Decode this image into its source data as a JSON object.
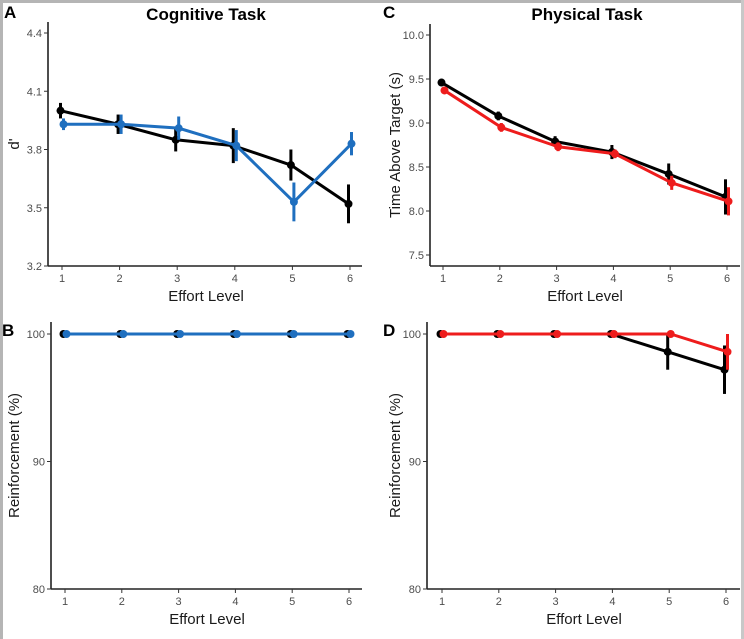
{
  "colors": {
    "cognitive": "#1f6fbf",
    "physical": "#ee1c1c",
    "black": "#000000"
  },
  "chart_data": [
    {
      "panel": "A",
      "type": "line",
      "title": "Cognitive Task",
      "title_color": "#1f6fbf",
      "xlabel": "Effort Level",
      "ylabel": "d'",
      "x": [
        1,
        2,
        3,
        4,
        5,
        6
      ],
      "x_ticks": [
        "1",
        "2",
        "3",
        "4",
        "5",
        "6"
      ],
      "ylim": [
        3.2,
        4.4
      ],
      "y_ticks": [
        "3.2",
        "3.5",
        "3.8",
        "4.1",
        "4.4"
      ],
      "y_tick_values": [
        3.2,
        3.5,
        3.8,
        4.1,
        4.4
      ],
      "grid": false,
      "series": [
        {
          "name": "black",
          "color": "#000000",
          "values": [
            4.0,
            3.93,
            3.85,
            3.82,
            3.72,
            3.52
          ],
          "err": [
            0.04,
            0.05,
            0.06,
            0.09,
            0.08,
            0.1
          ]
        },
        {
          "name": "blue",
          "color": "#1f6fbf",
          "values": [
            3.93,
            3.93,
            3.91,
            3.82,
            3.53,
            3.83
          ],
          "err": [
            0.03,
            0.05,
            0.06,
            0.08,
            0.1,
            0.06
          ]
        }
      ]
    },
    {
      "panel": "B",
      "type": "line",
      "title": "",
      "xlabel": "Effort Level",
      "ylabel": "Reinforcement (%)",
      "x": [
        1,
        2,
        3,
        4,
        5,
        6
      ],
      "x_ticks": [
        "1",
        "2",
        "3",
        "4",
        "5",
        "6"
      ],
      "ylim": [
        80,
        101
      ],
      "y_ticks": [
        "80",
        "90",
        "100"
      ],
      "y_tick_values": [
        80,
        90,
        100
      ],
      "grid": false,
      "series": [
        {
          "name": "black",
          "color": "#000000",
          "values": [
            100,
            100,
            100,
            100,
            100,
            100
          ],
          "err": [
            0,
            0,
            0,
            0,
            0,
            0
          ]
        },
        {
          "name": "blue",
          "color": "#1f6fbf",
          "values": [
            100,
            100,
            100,
            100,
            100,
            100
          ],
          "err": [
            0,
            0,
            0,
            0,
            0,
            0
          ]
        }
      ]
    },
    {
      "panel": "C",
      "type": "line",
      "title": "Physical Task",
      "title_color": "#ee1c1c",
      "xlabel": "Effort Level",
      "ylabel": "Time Above Target (s)",
      "x": [
        1,
        2,
        3,
        4,
        5,
        6
      ],
      "x_ticks": [
        "1",
        "2",
        "3",
        "4",
        "5",
        "6"
      ],
      "ylim": [
        7.5,
        10.0
      ],
      "y_ticks": [
        "7.5",
        "8.0",
        "8.5",
        "9.0",
        "9.5",
        "10.0"
      ],
      "y_tick_values": [
        7.5,
        8.0,
        8.5,
        9.0,
        9.5,
        10.0
      ],
      "grid": false,
      "series": [
        {
          "name": "black",
          "color": "#000000",
          "values": [
            9.46,
            9.08,
            8.79,
            8.67,
            8.42,
            8.16
          ],
          "err": [
            0.03,
            0.05,
            0.06,
            0.08,
            0.12,
            0.2
          ]
        },
        {
          "name": "red",
          "color": "#ee1c1c",
          "values": [
            9.37,
            8.95,
            8.73,
            8.65,
            8.32,
            8.11
          ],
          "err": [
            0.03,
            0.05,
            0.05,
            0.05,
            0.08,
            0.16
          ]
        }
      ]
    },
    {
      "panel": "D",
      "type": "line",
      "title": "",
      "xlabel": "Effort Level",
      "ylabel": "Reinforcement (%)",
      "x": [
        1,
        2,
        3,
        4,
        5,
        6
      ],
      "x_ticks": [
        "1",
        "2",
        "3",
        "4",
        "5",
        "6"
      ],
      "ylim": [
        80,
        101
      ],
      "y_ticks": [
        "80",
        "90",
        "100"
      ],
      "y_tick_values": [
        80,
        90,
        100
      ],
      "grid": false,
      "series": [
        {
          "name": "black",
          "color": "#000000",
          "values": [
            100,
            100,
            100,
            100,
            98.6,
            97.2
          ],
          "err": [
            0,
            0,
            0,
            0,
            1.4,
            1.9
          ]
        },
        {
          "name": "red",
          "color": "#ee1c1c",
          "values": [
            100,
            100,
            100,
            100,
            100,
            98.6
          ],
          "err": [
            0,
            0,
            0,
            0,
            0,
            1.4
          ]
        }
      ]
    }
  ]
}
